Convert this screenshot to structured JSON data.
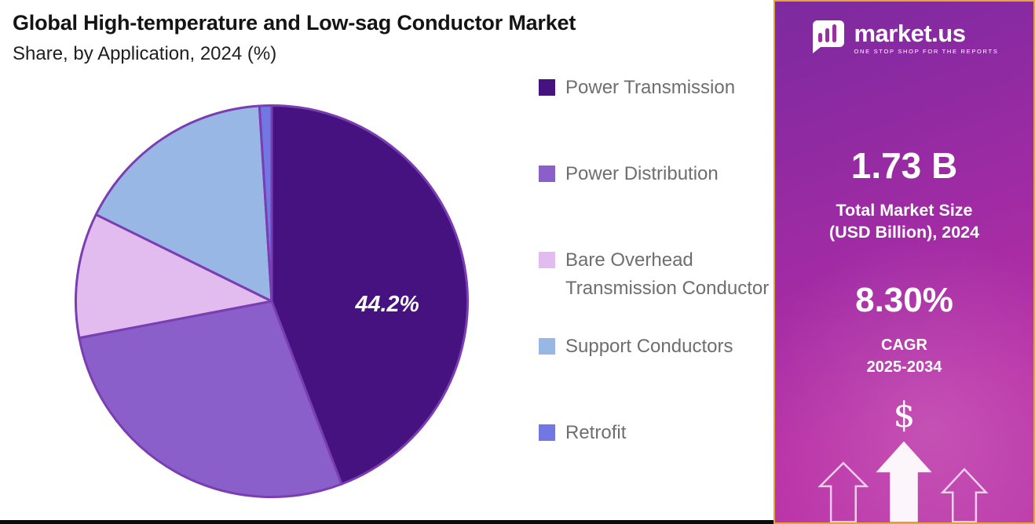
{
  "header": {
    "title": "Global High-temperature and Low-sag Conductor Market",
    "subtitle": "Share, by Application, 2024 (%)"
  },
  "chart_data": {
    "type": "pie",
    "title": "Global High-temperature and Low-sag Conductor Market Share, by Application, 2024 (%)",
    "unit": "%",
    "categories": [
      "Power Transmission",
      "Power Distribution",
      "Bare Overhead Transmission Conductor",
      "Support Conductors",
      "Retrofit"
    ],
    "values": [
      44.2,
      27.8,
      10.3,
      16.7,
      1.0
    ],
    "colors": [
      "#451280",
      "#8B5FC9",
      "#E3BCEF",
      "#99B7E4",
      "#7277E3"
    ],
    "label": {
      "index": 0,
      "text": "44.2%"
    },
    "start_angle": "12 o'clock",
    "direction": "clockwise",
    "legend_position": "right",
    "slice_border_color": "#7A3DB2"
  },
  "sidebar": {
    "brand": {
      "name": "market.us",
      "tagline": "ONE STOP SHOP FOR THE REPORTS"
    },
    "market_size": {
      "value": "1.73 B",
      "label_line1": "Total Market Size",
      "label_line2": "(USD Billion), 2024"
    },
    "cagr": {
      "value": "8.30%",
      "label_line1": "CAGR",
      "label_line2": "2025-2034"
    },
    "currency_symbol": "$",
    "colors": {
      "border": "#E8A23B",
      "gradient_top": "#7C2AA0",
      "gradient_bottom": "#BB37A9"
    }
  }
}
